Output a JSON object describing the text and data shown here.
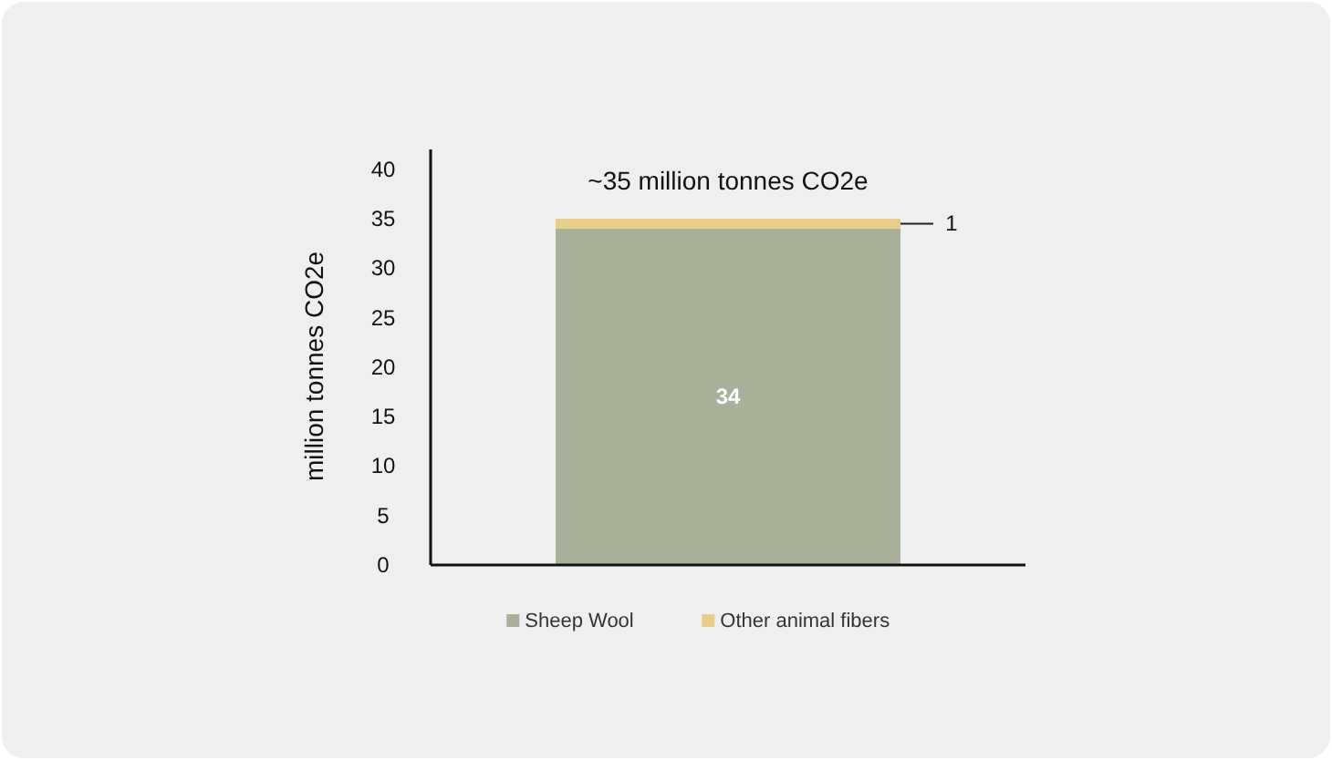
{
  "chart_data": {
    "type": "bar",
    "stacked": true,
    "categories": [
      null
    ],
    "ylabel": "million tonnes CO2e",
    "ylim": [
      0,
      42
    ],
    "yticks": [
      0,
      5,
      10,
      15,
      20,
      25,
      30,
      35,
      40
    ],
    "grid": false,
    "legend": "bottom",
    "data_labels": true,
    "totals": [
      "~35 million tonnes CO2e"
    ],
    "series": [
      {
        "name": "Sheep Wool",
        "color": "#a9b09a",
        "values": [
          34
        ]
      },
      {
        "name": "Other animal fibers",
        "color": "#e8cd8a",
        "values": [
          1
        ]
      }
    ]
  }
}
